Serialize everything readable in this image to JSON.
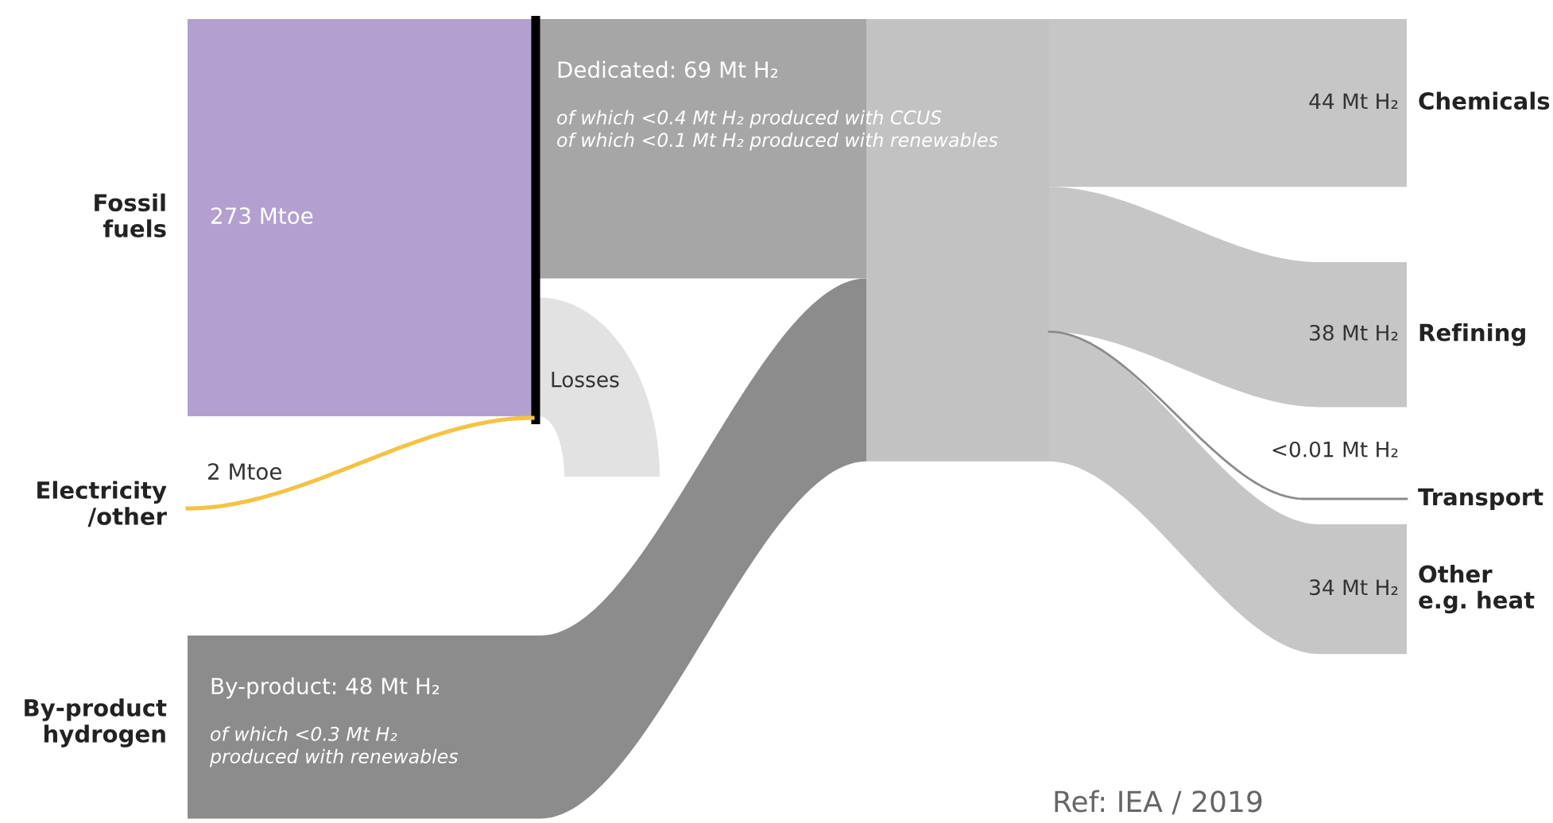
{
  "chart_data": {
    "type": "other",
    "categories": [
      "Fossil\nfuels",
      "Electricity\n/other",
      "By-product\nhydrogen",
      "Chemicals",
      "Refining",
      "Transport",
      "Other\ne.g. heat"
    ],
    "values": [
      273,
      2,
      48,
      44,
      38,
      0.01,
      34
    ],
    "value_labels": [
      "273 Mtoe",
      "2 Mtoe",
      "By-product: 48 Mt H₂",
      "44 Mt H₂",
      "38 Mt H₂",
      "<0.01 Mt H₂",
      "34 Mt H₂"
    ],
    "colors": [
      "#b3a0d0",
      "#f5c243",
      "#8c8c8c",
      "#c6c6c6",
      "#c6c6c6",
      "#8c8c8c",
      "#c6c6c6"
    ],
    "annotations": [
      "Dedicated: 69 Mt H₂",
      "of which <0.4 Mt H₂ produced with CCUS\nof which <0.1 Mt H₂ produced with renewables",
      "of which <0.3 Mt H₂\nproduced with renewables",
      "Losses",
      "Ref: IEA / 2019"
    ]
  }
}
